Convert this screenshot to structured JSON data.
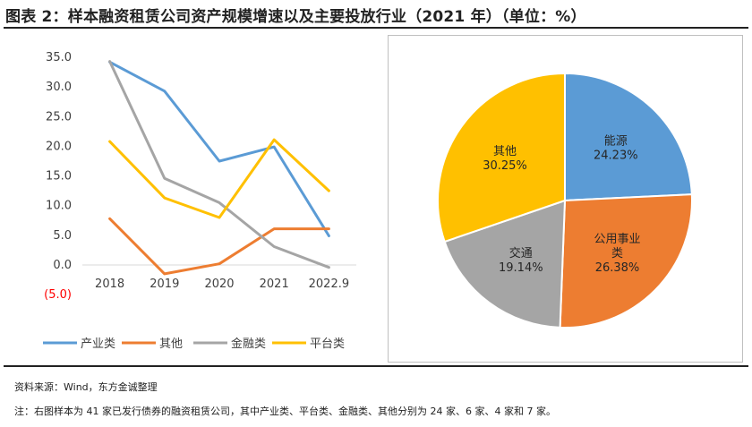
{
  "title": "图表 2：样本融资租赁公司资产规模增速以及主要投放行业（2021 年）（单位：%）",
  "source": "资料来源：Wind，东方金诚整理",
  "footnote": "注：右图样本为 41 家已发行债券的融资租赁公司，其中产业类、平台类、金融类、其他分别为 24 家、6 家、4 家和 7 家。",
  "colors": {
    "产业类": "#5b9bd5",
    "其他": "#ed7d31",
    "金融类": "#a5a5a5",
    "平台类": "#ffc000",
    "negative_tick": "#ff0000",
    "axis": "#d9d9d9"
  },
  "chart_data": [
    {
      "type": "line",
      "title": "",
      "xlabel": "",
      "ylabel": "",
      "categories": [
        "2018",
        "2019",
        "2020",
        "2021",
        "2022.9"
      ],
      "y_ticks": [
        "35.0",
        "30.0",
        "25.0",
        "20.0",
        "15.0",
        "10.0",
        "5.0",
        "0.0",
        "(5.0)"
      ],
      "y_tick_values": [
        35,
        30,
        25,
        20,
        15,
        10,
        5,
        0,
        -5
      ],
      "ylim": [
        -5,
        35
      ],
      "legend_position": "bottom",
      "series": [
        {
          "name": "产业类",
          "values": [
            34.2,
            29.3,
            17.5,
            19.9,
            4.9
          ]
        },
        {
          "name": "其他",
          "values": [
            7.8,
            -1.5,
            0.2,
            6.1,
            6.1
          ]
        },
        {
          "name": "金融类",
          "values": [
            34.3,
            14.6,
            10.5,
            3.1,
            -0.4
          ]
        },
        {
          "name": "平台类",
          "values": [
            20.8,
            11.3,
            8.0,
            21.1,
            12.5
          ]
        }
      ]
    },
    {
      "type": "pie",
      "title": "",
      "slices": [
        {
          "name": "能源",
          "label_lines": [
            "能源"
          ],
          "value": 24.23,
          "value_label": "24.23%",
          "color": "#5b9bd5"
        },
        {
          "name": "公用事业类",
          "label_lines": [
            "公用事业",
            "类"
          ],
          "value": 26.38,
          "value_label": "26.38%",
          "color": "#ed7d31"
        },
        {
          "name": "交通",
          "label_lines": [
            "交通"
          ],
          "value": 19.14,
          "value_label": "19.14%",
          "color": "#a5a5a5"
        },
        {
          "name": "其他",
          "label_lines": [
            "其他"
          ],
          "value": 30.25,
          "value_label": "30.25%",
          "color": "#ffc000"
        }
      ]
    }
  ]
}
